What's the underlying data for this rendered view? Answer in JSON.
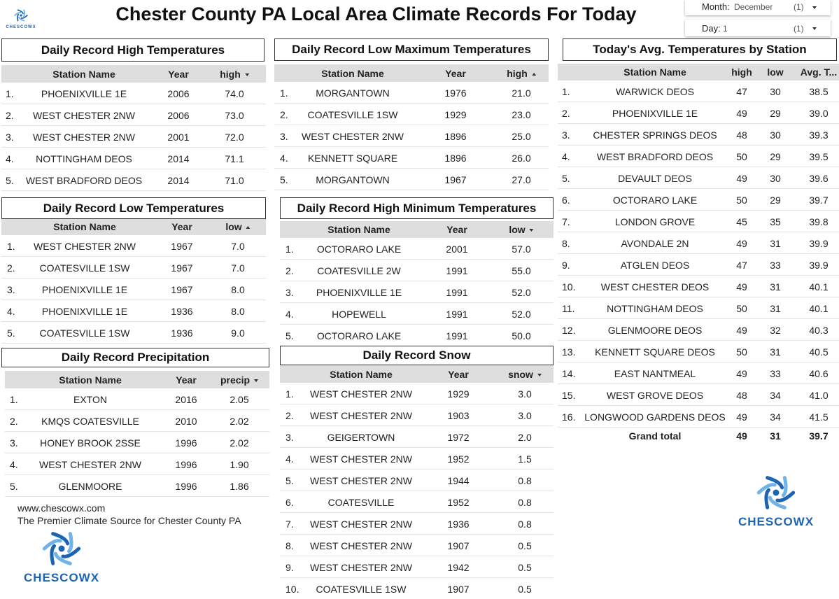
{
  "header": {
    "title": "Chester County PA Local Area Climate Records For Today",
    "logo_text": "CHESCOWX"
  },
  "filters": {
    "month": {
      "label": "Month:",
      "value": "December",
      "count": "(1)"
    },
    "day": {
      "label": "Day:",
      "value": "1",
      "count": "(1)"
    }
  },
  "tables": {
    "high_temps": {
      "title": "Daily Record High Temperatures",
      "columns": [
        "Station Name",
        "Year",
        "high"
      ],
      "rows": [
        [
          "1.",
          "PHOENIXVILLE 1E",
          "2006",
          "74.0"
        ],
        [
          "2.",
          "WEST CHESTER 2NW",
          "2006",
          "73.0"
        ],
        [
          "3.",
          "WEST CHESTER 2NW",
          "2001",
          "72.0"
        ],
        [
          "4.",
          "NOTTINGHAM DEOS",
          "2014",
          "71.1"
        ],
        [
          "5.",
          "WEST BRADFORD DEOS",
          "2014",
          "71.0"
        ]
      ]
    },
    "low_max": {
      "title": "Daily Record Low Maximum Temperatures",
      "columns": [
        "Station Name",
        "Year",
        "high"
      ],
      "rows": [
        [
          "1.",
          "MORGANTOWN",
          "1976",
          "21.0"
        ],
        [
          "2.",
          "COATESVILLE 1SW",
          "1929",
          "23.0"
        ],
        [
          "3.",
          "WEST CHESTER 2NW",
          "1896",
          "25.0"
        ],
        [
          "4.",
          "KENNETT SQUARE",
          "1896",
          "26.0"
        ],
        [
          "5.",
          "MORGANTOWN",
          "1967",
          "27.0"
        ]
      ]
    },
    "avg_temps": {
      "title": "Today's Avg. Temperatures by Station",
      "columns": [
        "Station Name",
        "high",
        "low",
        "Avg. T..."
      ],
      "rows": [
        [
          "1.",
          "WARWICK DEOS",
          "47",
          "30",
          "38.5"
        ],
        [
          "2.",
          "PHOENIXVILLE 1E",
          "49",
          "29",
          "39.0"
        ],
        [
          "3.",
          "CHESTER SPRINGS DEOS",
          "48",
          "30",
          "39.3"
        ],
        [
          "4.",
          "WEST BRADFORD DEOS",
          "50",
          "29",
          "39.5"
        ],
        [
          "5.",
          "DEVAULT DEOS",
          "49",
          "30",
          "39.6"
        ],
        [
          "6.",
          "OCTORARO LAKE",
          "50",
          "29",
          "39.7"
        ],
        [
          "7.",
          "LONDON GROVE",
          "45",
          "35",
          "39.8"
        ],
        [
          "8.",
          "AVONDALE 2N",
          "49",
          "31",
          "39.9"
        ],
        [
          "9.",
          "ATGLEN DEOS",
          "47",
          "33",
          "39.9"
        ],
        [
          "10.",
          "WEST CHESTER DEOS",
          "49",
          "31",
          "40.1"
        ],
        [
          "11.",
          "NOTTINGHAM DEOS",
          "50",
          "31",
          "40.1"
        ],
        [
          "12.",
          "GLENMOORE DEOS",
          "49",
          "32",
          "40.3"
        ],
        [
          "13.",
          "KENNETT SQUARE DEOS",
          "50",
          "31",
          "40.5"
        ],
        [
          "14.",
          "EAST NANTMEAL",
          "49",
          "33",
          "40.6"
        ],
        [
          "15.",
          "WEST GROVE DEOS",
          "48",
          "34",
          "41.0"
        ],
        [
          "16.",
          "LONGWOOD GARDENS DEOS",
          "49",
          "34",
          "41.5"
        ]
      ],
      "total": [
        "Grand total",
        "49",
        "31",
        "39.7"
      ]
    },
    "low_temps": {
      "title": "Daily Record Low Temperatures",
      "columns": [
        "Station Name",
        "Year",
        "low"
      ],
      "rows": [
        [
          "1.",
          "WEST CHESTER 2NW",
          "1967",
          "7.0"
        ],
        [
          "2.",
          "COATESVILLE 1SW",
          "1967",
          "7.0"
        ],
        [
          "3.",
          "PHOENIXVILLE 1E",
          "1967",
          "8.0"
        ],
        [
          "4.",
          "PHOENIXVILLE 1E",
          "1936",
          "8.0"
        ],
        [
          "5.",
          "COATESVILLE 1SW",
          "1936",
          "9.0"
        ]
      ]
    },
    "high_min": {
      "title": "Daily Record High Minimum Temperatures",
      "columns": [
        "Station Name",
        "Year",
        "low"
      ],
      "rows": [
        [
          "1.",
          "OCTORARO LAKE",
          "2001",
          "57.0"
        ],
        [
          "2.",
          "COATESVILLE 2W",
          "1991",
          "55.0"
        ],
        [
          "3.",
          "PHOENIXVILLE 1E",
          "1991",
          "52.0"
        ],
        [
          "4.",
          "HOPEWELL",
          "1991",
          "52.0"
        ],
        [
          "5.",
          "OCTORARO LAKE",
          "1991",
          "50.0"
        ]
      ]
    },
    "precip": {
      "title": "Daily Record Precipitation",
      "columns": [
        "Station Name",
        "Year",
        "precip"
      ],
      "rows": [
        [
          "1.",
          "EXTON",
          "2016",
          "2.05"
        ],
        [
          "2.",
          "KMQS COATESVILLE",
          "2010",
          "2.02"
        ],
        [
          "3.",
          "HONEY BROOK 2SSE",
          "1996",
          "2.02"
        ],
        [
          "4.",
          "WEST CHESTER 2NW",
          "1996",
          "1.90"
        ],
        [
          "5.",
          "GLENMOORE",
          "1996",
          "1.86"
        ]
      ]
    },
    "snow": {
      "title": "Daily Record Snow",
      "columns": [
        "Station Name",
        "Year",
        "snow"
      ],
      "rows": [
        [
          "1.",
          "WEST CHESTER 2NW",
          "1929",
          "3.0"
        ],
        [
          "2.",
          "WEST CHESTER 2NW",
          "1903",
          "3.0"
        ],
        [
          "3.",
          "GEIGERTOWN",
          "1972",
          "2.0"
        ],
        [
          "4.",
          "WEST CHESTER 2NW",
          "1952",
          "1.5"
        ],
        [
          "5.",
          "WEST CHESTER 2NW",
          "1944",
          "0.8"
        ],
        [
          "6.",
          "COATESVILLE",
          "1952",
          "0.8"
        ],
        [
          "7.",
          "WEST CHESTER 2NW",
          "1936",
          "0.8"
        ],
        [
          "8.",
          "WEST CHESTER 2NW",
          "1907",
          "0.5"
        ],
        [
          "9.",
          "WEST CHESTER 2NW",
          "1942",
          "0.5"
        ],
        [
          "10.",
          "COATESVILLE 1SW",
          "1907",
          "0.5"
        ]
      ]
    }
  },
  "footer": {
    "url": "www.chescowx.com",
    "tagline": "The Premier Climate Source for Chester County PA"
  }
}
